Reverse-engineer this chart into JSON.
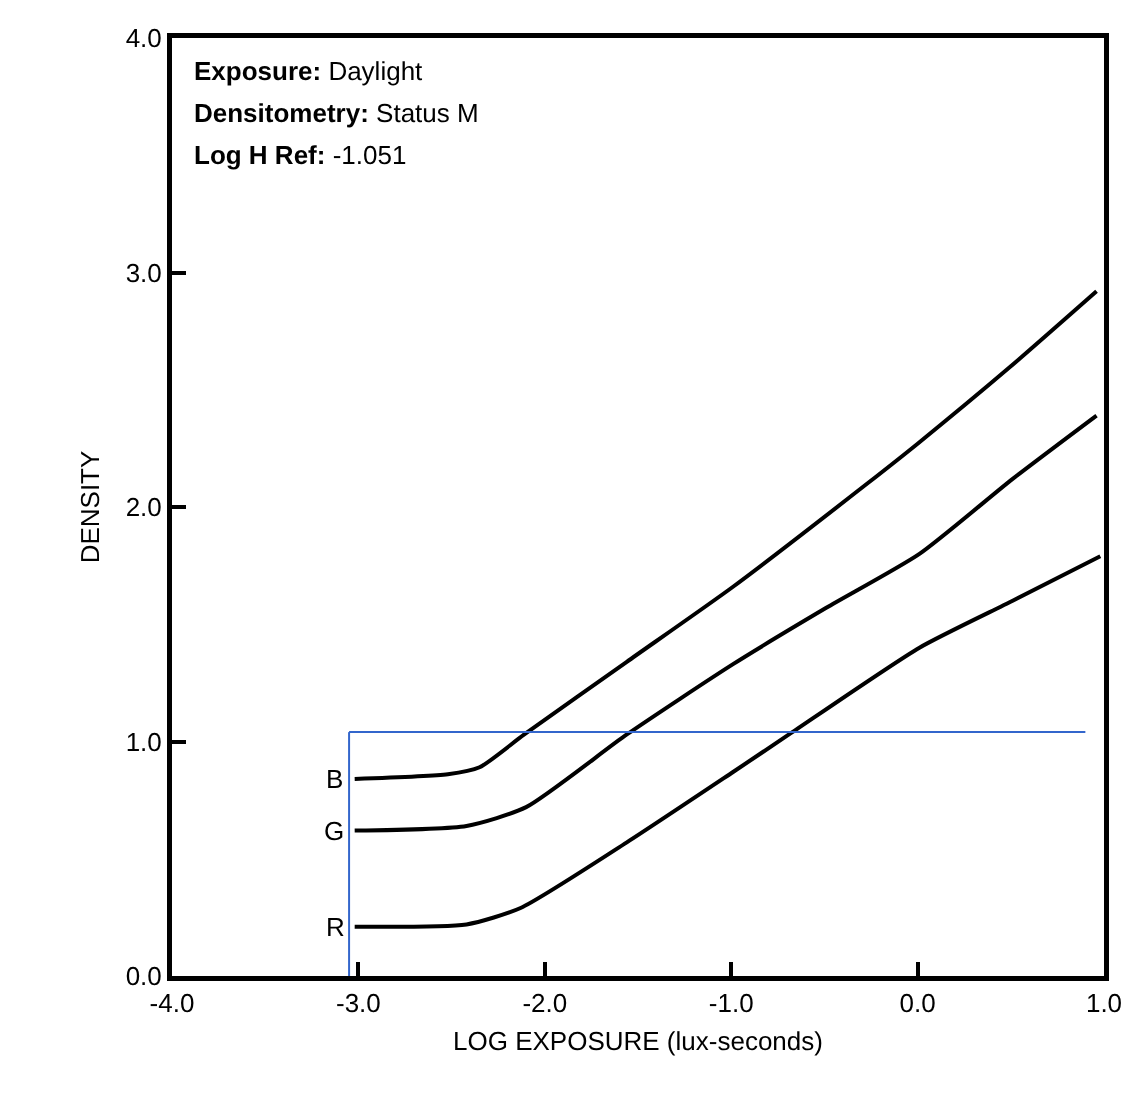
{
  "chart_data": {
    "type": "line",
    "xlabel": "LOG EXPOSURE (lux-seconds)",
    "ylabel": "DENSITY",
    "xlim": [
      -4,
      1
    ],
    "ylim": [
      0,
      4
    ],
    "xticks": [
      {
        "value": -4,
        "label": "-4.0"
      },
      {
        "value": -3,
        "label": "-3.0"
      },
      {
        "value": -2,
        "label": "-2.0"
      },
      {
        "value": -1,
        "label": "-1.0"
      },
      {
        "value": 0,
        "label": "0.0"
      },
      {
        "value": 1,
        "label": "1.0"
      }
    ],
    "yticks": [
      {
        "value": 0,
        "label": "0.0"
      },
      {
        "value": 1,
        "label": "1.0"
      },
      {
        "value": 2,
        "label": "2.0"
      },
      {
        "value": 3,
        "label": "3.0"
      },
      {
        "value": 4,
        "label": "4.0"
      }
    ],
    "grid": false,
    "legend": false,
    "marker": "none",
    "line_style": "solid",
    "annotations": [
      "Exposure: Daylight",
      "Densitometry: Status M",
      "Log H Ref: -1.051"
    ],
    "ref_lines": [
      {
        "axis": "y",
        "value": 1.04,
        "color": "#3366cc"
      },
      {
        "axis": "x",
        "value": -3.05,
        "color": "#3366cc"
      }
    ],
    "series": [
      {
        "name": "B",
        "color": "#000000",
        "x": [
          -3.02,
          -2.52,
          -2.35,
          -2.11,
          -1.56,
          -0.99,
          -0.27,
          0,
          0.5,
          0.96
        ],
        "values": [
          0.84,
          0.86,
          0.89,
          1.03,
          1.34,
          1.66,
          2.1,
          2.27,
          2.6,
          2.92
        ]
      },
      {
        "name": "G",
        "color": "#000000",
        "x": [
          -3.02,
          -2.42,
          -2.1,
          -1.56,
          -0.99,
          -0.49,
          0.01,
          0.51,
          0.96
        ],
        "values": [
          0.62,
          0.64,
          0.72,
          1.03,
          1.33,
          1.57,
          1.8,
          2.12,
          2.39
        ]
      },
      {
        "name": "R",
        "color": "#000000",
        "x": [
          -3.02,
          -2.42,
          -2.13,
          -1.56,
          -0.99,
          -0.69,
          0.01,
          0.51,
          0.98
        ],
        "values": [
          0.21,
          0.22,
          0.29,
          0.57,
          0.87,
          1.03,
          1.4,
          1.6,
          1.79
        ]
      }
    ]
  }
}
